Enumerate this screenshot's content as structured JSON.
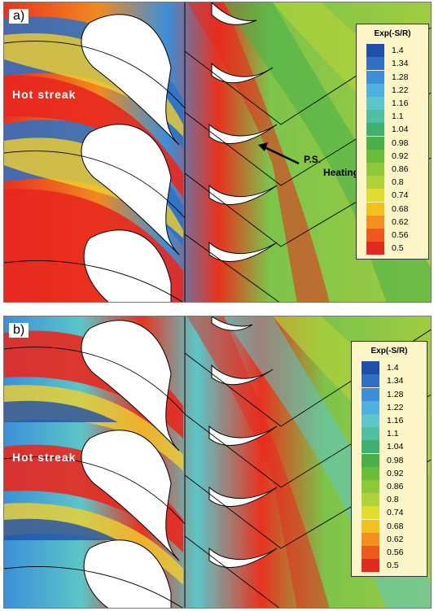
{
  "panels": [
    {
      "label": "a)",
      "hot_streak": "Hot streak",
      "legend_title": "Exp(-S/R)",
      "annotation": [
        "P.S.",
        "Heating"
      ]
    },
    {
      "label": "b)",
      "hot_streak": "Hot streak",
      "legend_title": "Exp(-S/R)"
    }
  ],
  "legend_levels": [
    "1.4",
    "1.34",
    "1.28",
    "1.22",
    "1.16",
    "1.1",
    "1.04",
    "0.98",
    "0.92",
    "0.86",
    "0.8",
    "0.74",
    "0.68",
    "0.62",
    "0.56",
    "0.5"
  ],
  "legend_colors": [
    "#1f4fa8",
    "#2f6fc4",
    "#3c8fd8",
    "#4fb0e0",
    "#5cc6c8",
    "#4fbfa0",
    "#3fb070",
    "#4cb04a",
    "#6cbc3c",
    "#8cc83a",
    "#b0d23a",
    "#e0dc30",
    "#f4c020",
    "#f49020",
    "#ee5a1e",
    "#e02a20"
  ],
  "colors": {
    "legend_bg": "#fcf5c7",
    "blade": "#ffffff",
    "hot": "#e8281e",
    "cool": "#2a72c8",
    "mid": "#7cc44a"
  }
}
